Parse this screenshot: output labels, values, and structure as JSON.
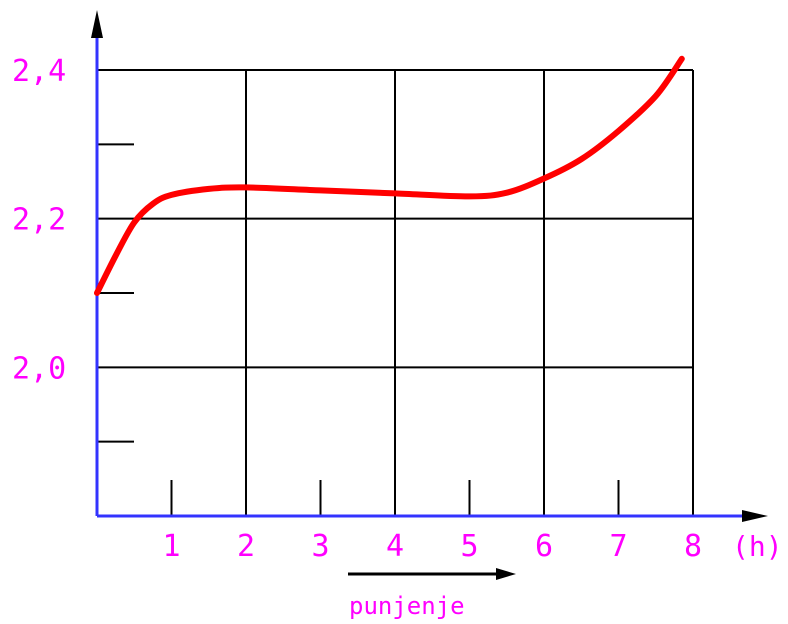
{
  "chart_data": {
    "type": "line",
    "title": "",
    "xlabel": "punjenje",
    "x_unit": "(h)",
    "ylabel": "",
    "x_ticks": [
      "1",
      "2",
      "3",
      "4",
      "5",
      "6",
      "7",
      "8"
    ],
    "y_ticks": [
      "2,0",
      "2,2",
      "2,4"
    ],
    "xlim": [
      0,
      8
    ],
    "ylim": [
      1.8,
      2.4
    ],
    "grid": true,
    "series": [
      {
        "color": "#ff0000",
        "x": [
          0,
          0.25,
          0.5,
          0.75,
          1,
          1.5,
          2,
          3,
          4,
          5,
          5.5,
          6,
          6.5,
          7,
          7.5,
          7.85
        ],
        "y": [
          2.1,
          2.15,
          2.195,
          2.22,
          2.232,
          2.24,
          2.242,
          2.238,
          2.234,
          2.23,
          2.235,
          2.254,
          2.28,
          2.318,
          2.365,
          2.415
        ]
      }
    ]
  },
  "colors": {
    "axis": "#3333ff",
    "grid": "#000000",
    "label": "#ff00ff",
    "curve": "#ff0000",
    "arrow": "#000000"
  }
}
